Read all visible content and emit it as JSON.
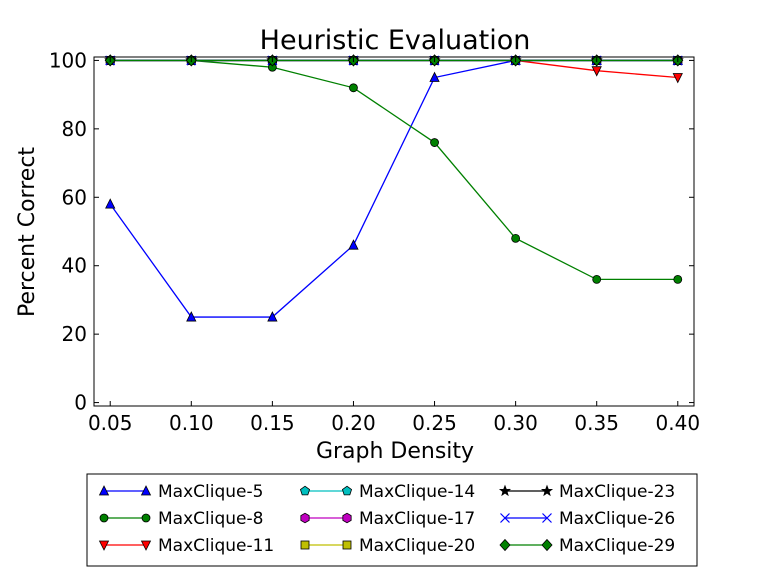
{
  "chart_data": {
    "type": "line",
    "title": "Heuristic Evaluation",
    "xlabel": "Graph Density",
    "ylabel": "Percent Correct",
    "x": [
      0.05,
      0.1,
      0.15,
      0.2,
      0.25,
      0.3,
      0.35,
      0.4
    ],
    "x_tick_labels": [
      "0.05",
      "0.10",
      "0.15",
      "0.20",
      "0.25",
      "0.30",
      "0.35",
      "0.40"
    ],
    "xlim": [
      0.04,
      0.41
    ],
    "ylim": [
      -1,
      101
    ],
    "y_ticks": [
      0,
      20,
      40,
      60,
      80,
      100
    ],
    "y_tick_labels": [
      "0",
      "20",
      "40",
      "60",
      "80",
      "100"
    ],
    "grid": false,
    "legend_placement": "below plot, 3 columns",
    "series": [
      {
        "name": "MaxClique-5",
        "color": "#0000ff",
        "marker": "triangle-up",
        "values": [
          58,
          25,
          25,
          46,
          95,
          100,
          100,
          100
        ]
      },
      {
        "name": "MaxClique-8",
        "color": "#008000",
        "marker": "circle",
        "values": [
          100,
          100,
          98,
          92,
          76,
          48,
          36,
          36
        ]
      },
      {
        "name": "MaxClique-11",
        "color": "#ff0000",
        "marker": "triangle-down",
        "values": [
          100,
          100,
          100,
          100,
          100,
          100,
          97,
          95
        ]
      },
      {
        "name": "MaxClique-14",
        "color": "#00bfbf",
        "marker": "pentagon",
        "values": [
          100,
          100,
          100,
          100,
          100,
          100,
          100,
          100
        ]
      },
      {
        "name": "MaxClique-17",
        "color": "#bf00bf",
        "marker": "hexagon",
        "values": [
          100,
          100,
          100,
          100,
          100,
          100,
          100,
          100
        ]
      },
      {
        "name": "MaxClique-20",
        "color": "#bfbf00",
        "marker": "square",
        "values": [
          100,
          100,
          100,
          100,
          100,
          100,
          100,
          100
        ]
      },
      {
        "name": "MaxClique-23",
        "color": "#000000",
        "marker": "star",
        "values": [
          100,
          100,
          100,
          100,
          100,
          100,
          100,
          100
        ]
      },
      {
        "name": "MaxClique-26",
        "color": "#0000ff",
        "marker": "x",
        "values": [
          100,
          100,
          100,
          100,
          100,
          100,
          100,
          100
        ]
      },
      {
        "name": "MaxClique-29",
        "color": "#008000",
        "marker": "diamond",
        "values": [
          100,
          100,
          100,
          100,
          100,
          100,
          100,
          100
        ]
      }
    ]
  }
}
